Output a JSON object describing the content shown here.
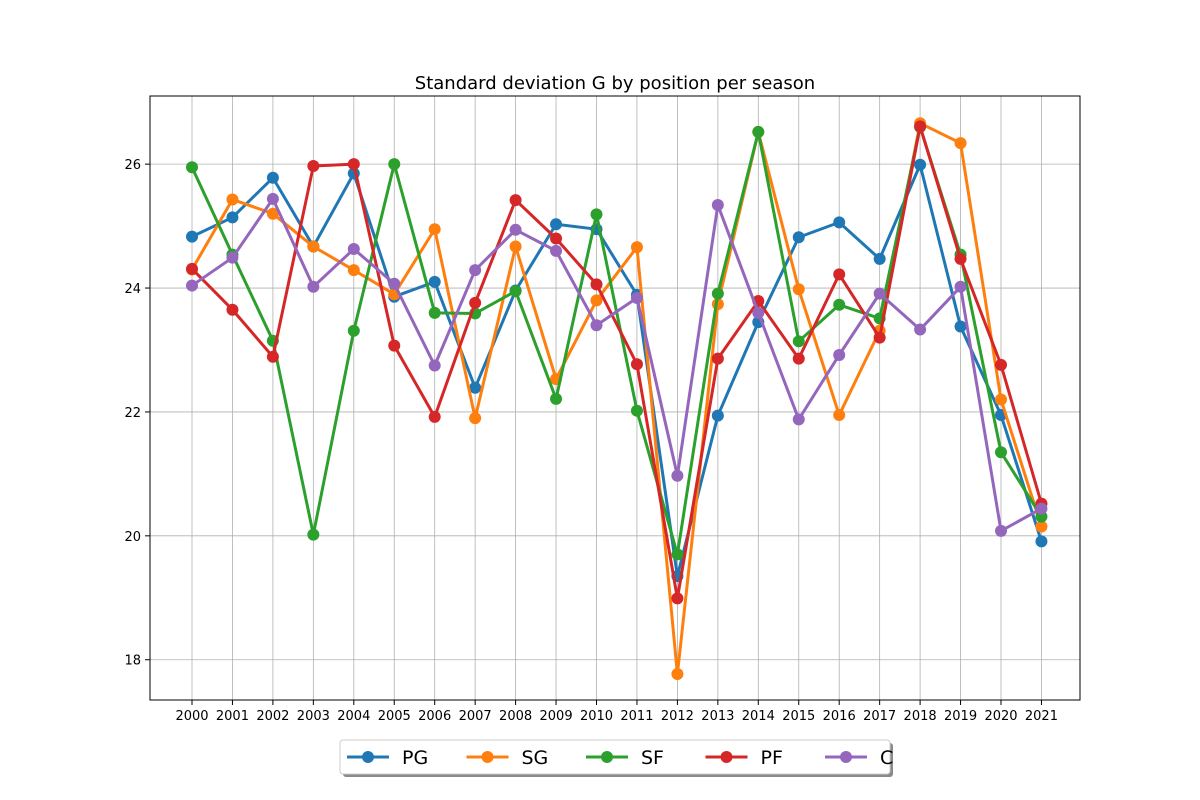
{
  "chart_data": {
    "type": "line",
    "title": "Standard deviation G by position per season",
    "xlabel": "",
    "ylabel": "",
    "x": [
      "2000",
      "2001",
      "2002",
      "2003",
      "2004",
      "2005",
      "2006",
      "2007",
      "2008",
      "2009",
      "2010",
      "2011",
      "2012",
      "2013",
      "2014",
      "2015",
      "2016",
      "2017",
      "2018",
      "2019",
      "2020",
      "2021"
    ],
    "yticks": [
      18,
      20,
      22,
      24,
      26
    ],
    "ylim": [
      17.35,
      27.1
    ],
    "grid": true,
    "legend_position": "bottom-center",
    "series": [
      {
        "name": "PG",
        "color": "#1f77b4",
        "values": [
          24.83,
          25.14,
          25.78,
          24.67,
          25.85,
          23.86,
          24.1,
          22.39,
          23.96,
          25.03,
          24.95,
          23.89,
          19.35,
          21.94,
          23.45,
          24.82,
          25.06,
          24.47,
          25.99,
          23.38,
          21.95,
          19.91
        ]
      },
      {
        "name": "SG",
        "color": "#ff7f0e",
        "values": [
          24.3,
          25.43,
          25.2,
          24.67,
          24.29,
          23.9,
          24.95,
          21.9,
          24.67,
          22.53,
          23.8,
          24.66,
          17.77,
          23.74,
          26.52,
          23.98,
          21.95,
          23.31,
          26.66,
          26.34,
          22.2,
          20.15
        ]
      },
      {
        "name": "SF",
        "color": "#2ca02c",
        "values": [
          25.95,
          24.54,
          23.15,
          20.02,
          23.31,
          26.0,
          23.6,
          23.59,
          23.95,
          22.21,
          25.19,
          22.02,
          19.7,
          23.91,
          26.52,
          23.14,
          23.73,
          23.51,
          26.6,
          24.54,
          21.35,
          20.31
        ]
      },
      {
        "name": "PF",
        "color": "#d62728",
        "values": [
          24.31,
          23.65,
          22.89,
          25.97,
          26.0,
          23.07,
          21.92,
          23.76,
          25.42,
          24.8,
          24.06,
          22.77,
          18.99,
          22.86,
          23.79,
          22.86,
          24.22,
          23.2,
          26.61,
          24.47,
          22.76,
          20.52
        ]
      },
      {
        "name": "C",
        "color": "#9467bd",
        "values": [
          24.04,
          24.49,
          25.44,
          24.02,
          24.63,
          24.07,
          22.75,
          24.29,
          24.94,
          24.6,
          23.4,
          23.84,
          20.97,
          25.34,
          23.6,
          21.88,
          22.92,
          23.91,
          23.33,
          24.02,
          20.08,
          20.44
        ]
      }
    ]
  }
}
